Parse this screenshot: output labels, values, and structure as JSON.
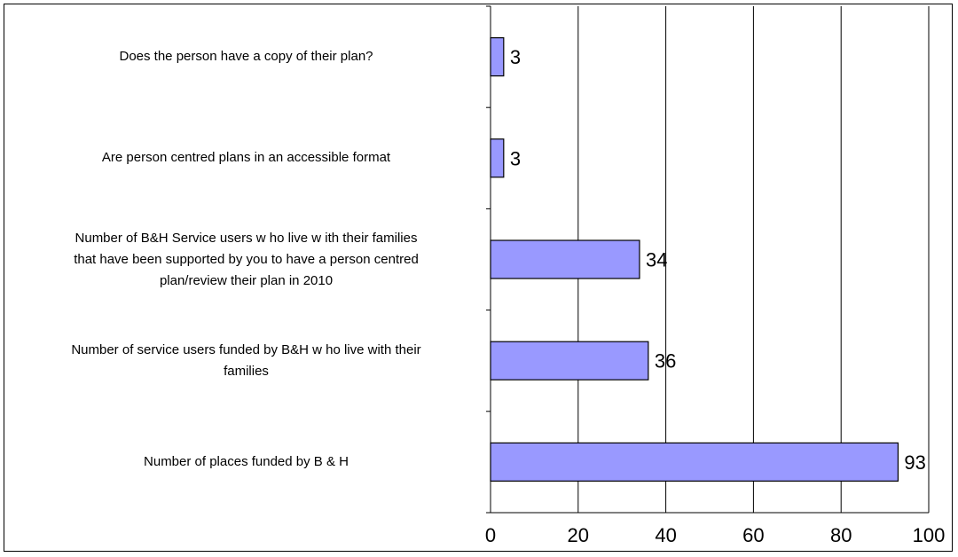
{
  "chart_data": {
    "type": "bar",
    "orientation": "horizontal",
    "categories": [
      "Does the person have a copy of their plan?",
      "Are person centred plans in an accessible format",
      "Number of B&H Service users w ho live w ith their families that have been supported by you to have a person centred plan/review  their plan in 2010",
      "Number of service users funded by B&H w ho live with their families",
      "Number of places funded by B & H"
    ],
    "category_lines": [
      [
        "Does the person have a copy of their plan?"
      ],
      [
        "Are person centred plans in an accessible format"
      ],
      [
        "Number of B&H Service users w ho live w ith their families",
        "that have been supported by you to have a person centred",
        "plan/review  their plan in 2010"
      ],
      [
        "Number of service users funded by B&H w ho live with their",
        "families"
      ],
      [
        "Number of places funded by B & H"
      ]
    ],
    "values": [
      3,
      3,
      34,
      36,
      93
    ],
    "data_labels": [
      "3",
      "3",
      "34",
      "36",
      "93"
    ],
    "xlim": [
      0,
      100
    ],
    "x_ticks": [
      "0",
      "20",
      "40",
      "60",
      "80",
      "100"
    ],
    "grid": true,
    "legend": "none",
    "title": "",
    "xlabel": "",
    "ylabel": "",
    "colors": {
      "bar_fill": "#9999ff",
      "bar_stroke": "#000000",
      "grid": "#000000"
    }
  }
}
